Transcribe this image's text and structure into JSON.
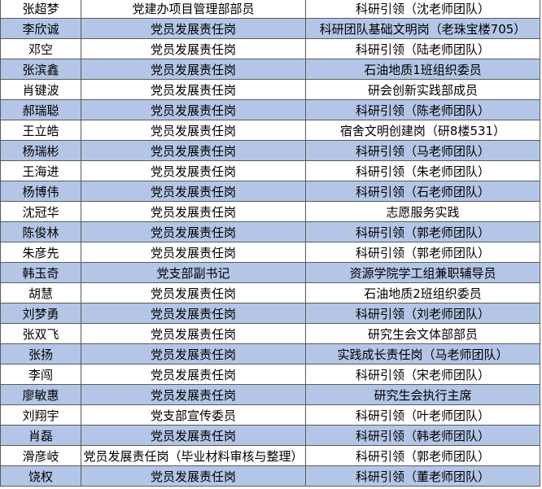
{
  "table": {
    "rows": [
      [
        "张超梦",
        "党建办项目管理部部员",
        "科研引领（沈老师团队）"
      ],
      [
        "李欣诚",
        "党员发展责任岗",
        "科研团队基础文明岗（老珠宝楼705）"
      ],
      [
        "邓空",
        "党员发展责任岗",
        "科研引领（陆老师团队）"
      ],
      [
        "张滨鑫",
        "党员发展责任岗",
        "石油地质1班组织委员"
      ],
      [
        "肖键波",
        "党员发展责任岗",
        "研会创新实践部成员"
      ],
      [
        "郝瑞聪",
        "党员发展责任岗",
        "科研引领（陈老师团队）"
      ],
      [
        "王立皓",
        "党员发展责任岗",
        "宿舍文明创建岗（研8楼531）"
      ],
      [
        "杨瑞彬",
        "党员发展责任岗",
        "科研引领（马老师团队）"
      ],
      [
        "王海进",
        "党员发展责任岗",
        "科研引领（朱老师团队）"
      ],
      [
        "杨博伟",
        "党员发展责任岗",
        "科研引领（石老师团队）"
      ],
      [
        "沈冠华",
        "党员发展责任岗",
        "志愿服务实践"
      ],
      [
        "陈俊林",
        "党员发展责任岗",
        "科研引领（郭老师团队）"
      ],
      [
        "朱彦先",
        "党员发展责任岗",
        "科研引领（郭老师团队）"
      ],
      [
        "韩玉奇",
        "党支部副书记",
        "资源学院学工组兼职辅导员"
      ],
      [
        "胡慧",
        "党员发展责任岗",
        "石油地质2班组织委员"
      ],
      [
        "刘梦勇",
        "党员发展责任岗",
        "科研引领（刘老师团队）"
      ],
      [
        "张双飞",
        "党员发展责任岗",
        "研究生会文体部部员"
      ],
      [
        "张扬",
        "党员发展责任岗",
        "实践成长责任岗（马老师团队）"
      ],
      [
        "李闯",
        "党员发展责任岗",
        "科研引领（宋老师团队）"
      ],
      [
        "廖敏惠",
        "党员发展责任岗",
        "研究生会执行主席"
      ],
      [
        "刘翔宇",
        "党支部宣传委员",
        "科研引领（叶老师团队）"
      ],
      [
        "肖磊",
        "党员发展责任岗",
        "科研引领（韩老师团队）"
      ],
      [
        "滑彦岐",
        "党员发展责任岗（毕业材料审核与整理）",
        "科研引领（郭老师团队）"
      ],
      [
        "饶权",
        "党员发展责任岗",
        "科研引领（董老师团队）"
      ]
    ]
  }
}
